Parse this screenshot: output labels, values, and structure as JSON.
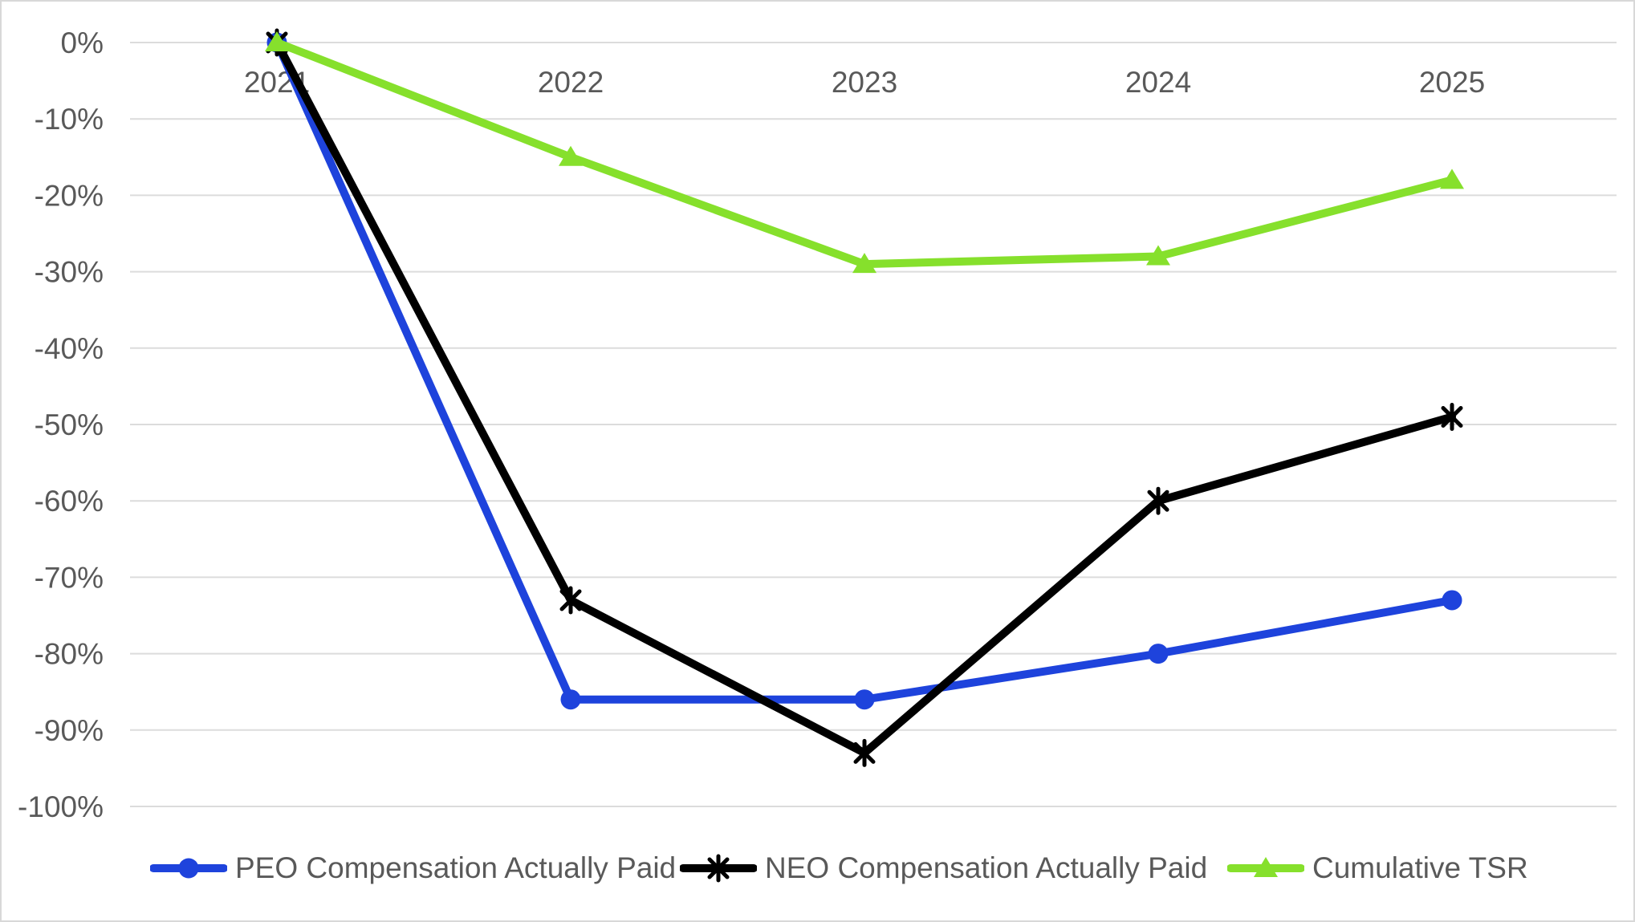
{
  "chart_data": {
    "type": "line",
    "title": "",
    "categories": [
      "2021",
      "2022",
      "2023",
      "2024",
      "2025"
    ],
    "series": [
      {
        "name": "PEO Compensation Actually Paid",
        "color": "#1e43dc",
        "marker": "circle",
        "values": [
          0,
          -86,
          -86,
          -80,
          -73
        ]
      },
      {
        "name": "NEO Compensation Actually Paid",
        "color": "#000000",
        "marker": "asterisk",
        "values": [
          0,
          -73,
          -93,
          -60,
          -49
        ]
      },
      {
        "name": "Cumulative TSR",
        "color": "#86e02c",
        "marker": "triangle",
        "values": [
          0,
          -15,
          -29,
          -28,
          -18
        ]
      }
    ],
    "y_axis": {
      "min": -100,
      "max": 0,
      "step": 10,
      "tick_labels": [
        "0%",
        "-10%",
        "-20%",
        "-30%",
        "-40%",
        "-50%",
        "-60%",
        "-70%",
        "-80%",
        "-90%",
        "-100%"
      ],
      "format": "percent"
    },
    "x_axis": {
      "label_position": "top-inside"
    },
    "grid": true,
    "legend_position": "bottom",
    "text_color": "#595959",
    "gridline_color": "#dcdcdc",
    "background_color": "#ffffff"
  }
}
